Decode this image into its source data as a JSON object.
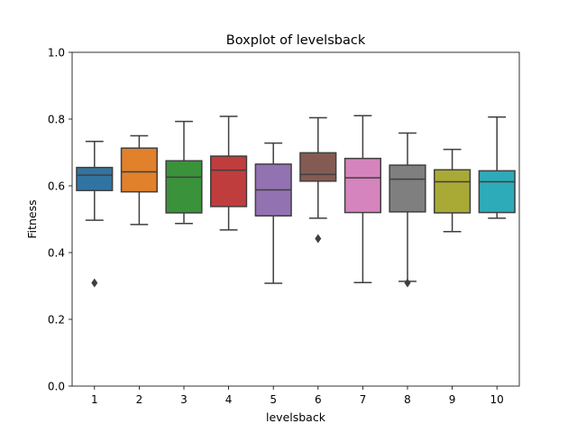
{
  "chart_data": {
    "type": "boxplot",
    "title": "Boxplot of levelsback",
    "xlabel": "levelsback",
    "ylabel": "Fitness",
    "ylim": [
      0.0,
      1.0
    ],
    "yticks": [
      "0.0",
      "0.2",
      "0.4",
      "0.6",
      "0.8",
      "1.0"
    ],
    "grid": false,
    "categories": [
      "1",
      "2",
      "3",
      "4",
      "5",
      "6",
      "7",
      "8",
      "9",
      "10"
    ],
    "boxes": [
      {
        "category": "1",
        "color": "#3274a1",
        "whisker_low": 0.497,
        "q1": 0.586,
        "median": 0.632,
        "q3": 0.655,
        "whisker_high": 0.733,
        "outliers": [
          0.309
        ]
      },
      {
        "category": "2",
        "color": "#e1812c",
        "whisker_low": 0.484,
        "q1": 0.582,
        "median": 0.642,
        "q3": 0.713,
        "whisker_high": 0.75,
        "outliers": []
      },
      {
        "category": "3",
        "color": "#3a923a",
        "whisker_low": 0.487,
        "q1": 0.519,
        "median": 0.626,
        "q3": 0.675,
        "whisker_high": 0.793,
        "outliers": []
      },
      {
        "category": "4",
        "color": "#c03d3e",
        "whisker_low": 0.468,
        "q1": 0.538,
        "median": 0.647,
        "q3": 0.689,
        "whisker_high": 0.808,
        "outliers": []
      },
      {
        "category": "5",
        "color": "#9372b2",
        "whisker_low": 0.308,
        "q1": 0.51,
        "median": 0.588,
        "q3": 0.665,
        "whisker_high": 0.728,
        "outliers": []
      },
      {
        "category": "6",
        "color": "#845b53",
        "whisker_low": 0.503,
        "q1": 0.614,
        "median": 0.634,
        "q3": 0.699,
        "whisker_high": 0.804,
        "outliers": [
          0.442
        ]
      },
      {
        "category": "7",
        "color": "#d684bd",
        "whisker_low": 0.31,
        "q1": 0.52,
        "median": 0.624,
        "q3": 0.682,
        "whisker_high": 0.81,
        "outliers": []
      },
      {
        "category": "8",
        "color": "#7f7f7f",
        "whisker_low": 0.314,
        "q1": 0.522,
        "median": 0.62,
        "q3": 0.662,
        "whisker_high": 0.758,
        "outliers": [
          0.309
        ]
      },
      {
        "category": "9",
        "color": "#a9aa35",
        "whisker_low": 0.463,
        "q1": 0.519,
        "median": 0.612,
        "q3": 0.648,
        "whisker_high": 0.709,
        "outliers": []
      },
      {
        "category": "10",
        "color": "#2eabb8",
        "whisker_low": 0.503,
        "q1": 0.52,
        "median": 0.612,
        "q3": 0.645,
        "whisker_high": 0.806,
        "outliers": []
      }
    ]
  }
}
